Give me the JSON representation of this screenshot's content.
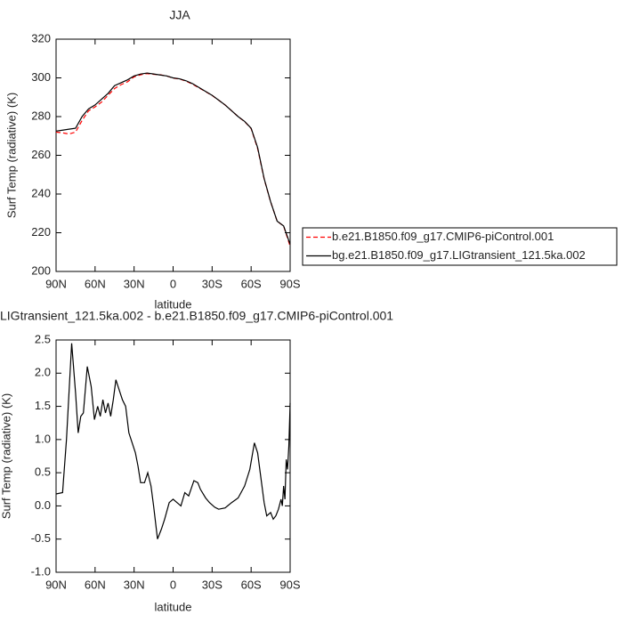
{
  "chart_data": [
    {
      "type": "line",
      "title": "JJA",
      "ylabel": "Surf Temp (radiative) (K)",
      "xlabel": "latitude",
      "x": [
        90,
        85,
        80,
        75,
        70,
        65,
        60,
        55,
        50,
        45,
        40,
        35,
        30,
        25,
        20,
        15,
        10,
        5,
        0,
        -5,
        -10,
        -15,
        -20,
        -25,
        -30,
        -35,
        -40,
        -45,
        -50,
        -55,
        -60,
        -65,
        -70,
        -75,
        -80,
        -85,
        -90
      ],
      "series": [
        {
          "name": "b.e21.B1850.f09_g17.CMIP6-piControl.001",
          "color": "#ff0000",
          "dash": true,
          "values": [
            272,
            271.6,
            271,
            272,
            278,
            283,
            285,
            287.5,
            291,
            294.5,
            296.5,
            298,
            300.5,
            301.6,
            302.2,
            301.8,
            301.6,
            301,
            299.9,
            299.4,
            298.3,
            296.7,
            294.8,
            292.9,
            290.9,
            288.5,
            286,
            283,
            280,
            277.4,
            273.8,
            263.5,
            247.8,
            235.9,
            226,
            223.4,
            213
          ]
        },
        {
          "name": "bg.e21.B1850.f09_g17.LIGtransient_121.5ka.002",
          "color": "#000000",
          "dash": false,
          "values": [
            272.5,
            273,
            273.5,
            274,
            280,
            284,
            286,
            289,
            292,
            296,
            297.5,
            299,
            301,
            302,
            302.5,
            302,
            301.5,
            301,
            300,
            299.5,
            298.5,
            297,
            295,
            293,
            291,
            288.5,
            286,
            283,
            280,
            277.5,
            274,
            264,
            248,
            236,
            226,
            223.5,
            214
          ]
        }
      ],
      "xlim": [
        90,
        -90
      ],
      "xticks": [
        {
          "value": 90,
          "label": "90N"
        },
        {
          "value": 60,
          "label": "60N"
        },
        {
          "value": 30,
          "label": "30N"
        },
        0,
        {
          "value": -30,
          "label": "30S"
        },
        {
          "value": -60,
          "label": "60S"
        },
        {
          "value": -90,
          "label": "90S"
        }
      ],
      "ylim": [
        200,
        320
      ],
      "yticks": [
        200,
        220,
        240,
        260,
        280,
        300,
        320
      ],
      "legend": "outside right"
    },
    {
      "type": "line",
      "title": "LIGtransient_121.5ka.002 - b.e21.B1850.f09_g17.CMIP6-piControl.001",
      "ylabel": "Surf Temp (radiative) (K)",
      "xlabel": "latitude",
      "x": [
        90,
        85,
        82,
        78,
        75,
        73,
        71,
        69,
        66,
        63,
        60.5,
        58,
        56,
        54,
        52,
        50,
        48,
        46,
        44,
        41.5,
        39,
        36.5,
        34,
        31.5,
        29,
        27,
        25,
        22,
        19.5,
        17,
        15,
        12,
        9,
        6.5,
        3,
        0,
        -3,
        -6,
        -9,
        -12,
        -16,
        -19,
        -21,
        -25,
        -28,
        -32,
        -35,
        -40,
        -45,
        -50,
        -55,
        -59,
        -62.5,
        -65,
        -67,
        -70,
        -72,
        -75,
        -77,
        -79,
        -81,
        -83,
        -84,
        -85,
        -86,
        -87,
        -88,
        -89,
        -90
      ],
      "series": [
        {
          "name": null,
          "color": "#000000",
          "dash": false,
          "values": [
            0.18,
            0.2,
            1.0,
            2.45,
            1.7,
            1.1,
            1.35,
            1.4,
            2.1,
            1.8,
            1.3,
            1.5,
            1.35,
            1.6,
            1.4,
            1.55,
            1.35,
            1.6,
            1.9,
            1.75,
            1.6,
            1.5,
            1.1,
            0.95,
            0.8,
            0.6,
            0.35,
            0.35,
            0.5,
            0.3,
            0.0,
            -0.5,
            -0.35,
            -0.2,
            0.05,
            0.1,
            0.05,
            0.0,
            0.2,
            0.15,
            0.38,
            0.35,
            0.25,
            0.12,
            0.05,
            -0.02,
            -0.05,
            -0.03,
            0.05,
            0.12,
            0.3,
            0.55,
            0.95,
            0.8,
            0.5,
            0.05,
            -0.15,
            -0.1,
            -0.2,
            -0.15,
            -0.05,
            0.1,
            0.0,
            0.3,
            0.1,
            0.7,
            0.55,
            0.9,
            1.55
          ]
        }
      ],
      "xlim": [
        90,
        -90
      ],
      "xticks": [
        {
          "value": 90,
          "label": "90N"
        },
        {
          "value": 60,
          "label": "60N"
        },
        {
          "value": 30,
          "label": "30N"
        },
        0,
        {
          "value": -30,
          "label": "30S"
        },
        {
          "value": -60,
          "label": "60S"
        },
        {
          "value": -90,
          "label": "90S"
        }
      ],
      "ylim": [
        -1.0,
        2.5
      ],
      "yticks": [
        {
          "value": -1.0,
          "label": "-1.0"
        },
        -0.5,
        {
          "value": 0,
          "label": "0.0"
        },
        0.5,
        {
          "value": 1,
          "label": "1.0"
        },
        1.5,
        {
          "value": 2,
          "label": "2.0"
        },
        2.5
      ]
    }
  ]
}
